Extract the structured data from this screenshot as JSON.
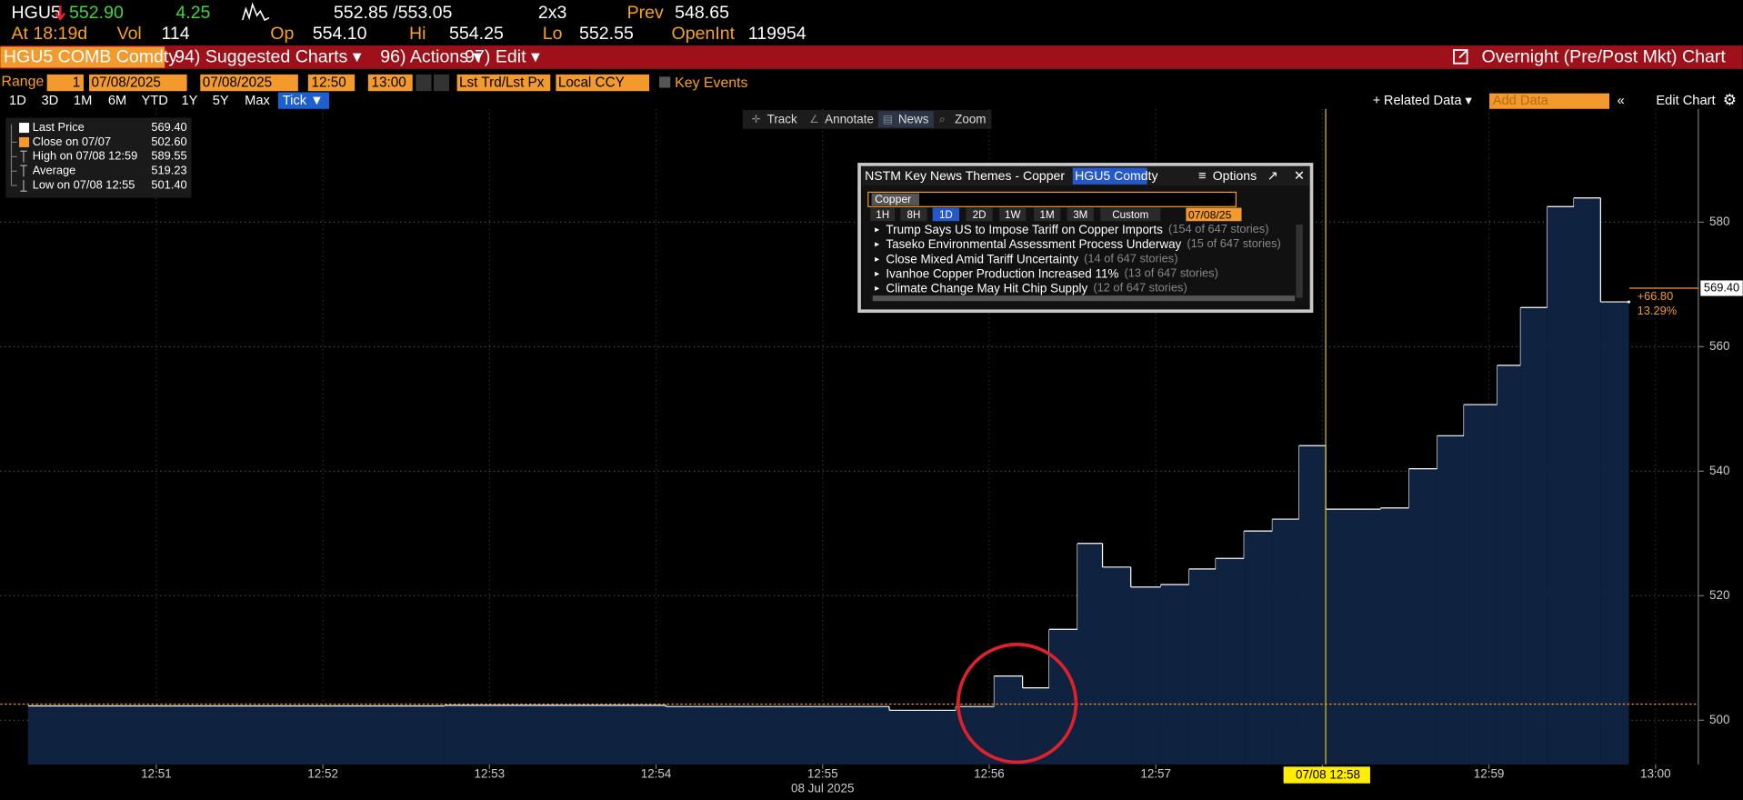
{
  "header": {
    "ticker": "HGU5",
    "last": "552.90",
    "change": "4.25",
    "bid_ask": "552.85 /553.05",
    "size": "2x3",
    "prev_label": "Prev",
    "prev": "548.65",
    "time": "At 18:19d",
    "vol_label": "Vol",
    "vol": "114",
    "open_label": "Op",
    "open": "554.10",
    "high_label": "Hi",
    "high": "554.25",
    "low_label": "Lo",
    "low": "552.55",
    "oi_label": "OpenInt",
    "oi": "119954"
  },
  "menu": {
    "security": "HGU5 COMB Comdty",
    "items": [
      "94) Suggested Charts ▾",
      "96) Actions ▾",
      "97) Edit ▾"
    ],
    "chart_name": "Overnight (Pre/Post Mkt) Chart"
  },
  "range": {
    "label": "Range",
    "count": "1",
    "start_date": "07/08/2025",
    "end_date": "07/08/2025",
    "start_time": "12:50",
    "end_time": "13:00",
    "field": "Lst Trd/Lst Px",
    "currency": "Local CCY",
    "events": "Key Events"
  },
  "periods": [
    "1D",
    "3D",
    "1M",
    "6M",
    "YTD",
    "1Y",
    "5Y",
    "Max",
    "Tick ▼"
  ],
  "tools_right": [
    "Related Data ▾",
    "Add Data",
    "Edit Chart"
  ],
  "chart_tools": [
    "Track",
    "Annotate",
    "News",
    "Zoom"
  ],
  "news": {
    "title": "NSTM Key News Themes - Copper",
    "security": "HGU5 Comdty",
    "options": "Options",
    "search": "Copper",
    "periods": [
      "1H",
      "8H",
      "1D",
      "2D",
      "1W",
      "1M",
      "3M",
      "Custom"
    ],
    "date": "07/08/25",
    "items": [
      {
        "headline": "Trump Says US to Impose Tariff on Copper Imports",
        "count": "(154 of 647 stories)"
      },
      {
        "headline": "Taseko Environmental Assessment Process Underway",
        "count": "(15 of 647 stories)"
      },
      {
        "headline": "Close Mixed Amid Tariff Uncertainty",
        "count": "(14 of 647 stories)"
      },
      {
        "headline": "Ivanhoe Copper Production Increased 11%",
        "count": "(13 of 647 stories)"
      },
      {
        "headline": "Climate Change May Hit Chip Supply",
        "count": "(12 of 647 stories)"
      }
    ]
  },
  "chart_data": {
    "type": "step-area",
    "color": "#0f2340",
    "line_color": "#ffffff",
    "x": [
      770.23,
      772.73,
      774.06,
      775.4,
      775.8,
      776.03,
      776.2,
      776.36,
      776.53,
      776.68,
      776.85,
      777.03,
      777.2,
      777.36,
      777.53,
      777.7,
      777.86,
      778.02,
      778.35,
      778.52,
      778.69,
      778.85,
      779.05,
      779.19,
      779.35,
      779.51,
      779.67,
      779.84
    ],
    "values": [
      502.3,
      502.4,
      502.2,
      501.6,
      502.2,
      507.1,
      505.2,
      514.6,
      528.4,
      524.6,
      521.4,
      521.8,
      524.3,
      526.0,
      530.4,
      532.3,
      544.1,
      533.9,
      534.1,
      540.4,
      545.7,
      550.7,
      557.0,
      566.3,
      582.5,
      583.9,
      567.2,
      567.2
    ],
    "xlim": [
      770.23,
      780.25
    ],
    "xticks": [
      {
        "value": 771,
        "label": "12:51"
      },
      {
        "value": 772,
        "label": "12:52"
      },
      {
        "value": 773,
        "label": "12:53"
      },
      {
        "value": 774,
        "label": "12:54"
      },
      {
        "value": 775,
        "label": "12:55"
      },
      {
        "value": 776,
        "label": "12:56"
      },
      {
        "value": 777,
        "label": "12:57"
      },
      {
        "value": 778,
        "label": "12:58"
      },
      {
        "value": 779,
        "label": "12:59"
      },
      {
        "value": 780,
        "label": "13:00"
      }
    ],
    "x_sublabel": "08 Jul 2025",
    "ylim": [
      492.9,
      598.2
    ],
    "yticks": [
      500,
      520,
      540,
      560,
      580
    ],
    "grid": true,
    "legend": [
      {
        "name": "Last Price",
        "value": 569.4,
        "label": "569.40"
      },
      {
        "name": "Close on 07/07",
        "value": 502.6,
        "label": "502.60"
      },
      {
        "name": "High on 07/08 12:59",
        "value": 589.55,
        "label": "589.55"
      },
      {
        "name": "Average",
        "value": 519.23,
        "label": "519.23"
      },
      {
        "name": "Low on 07/08 12:55",
        "value": 501.4,
        "label": "501.40"
      }
    ],
    "change": "+66.80",
    "change_pct": "13.29%",
    "cursor": {
      "value": 778.02,
      "label": "07/08 12:58"
    }
  }
}
